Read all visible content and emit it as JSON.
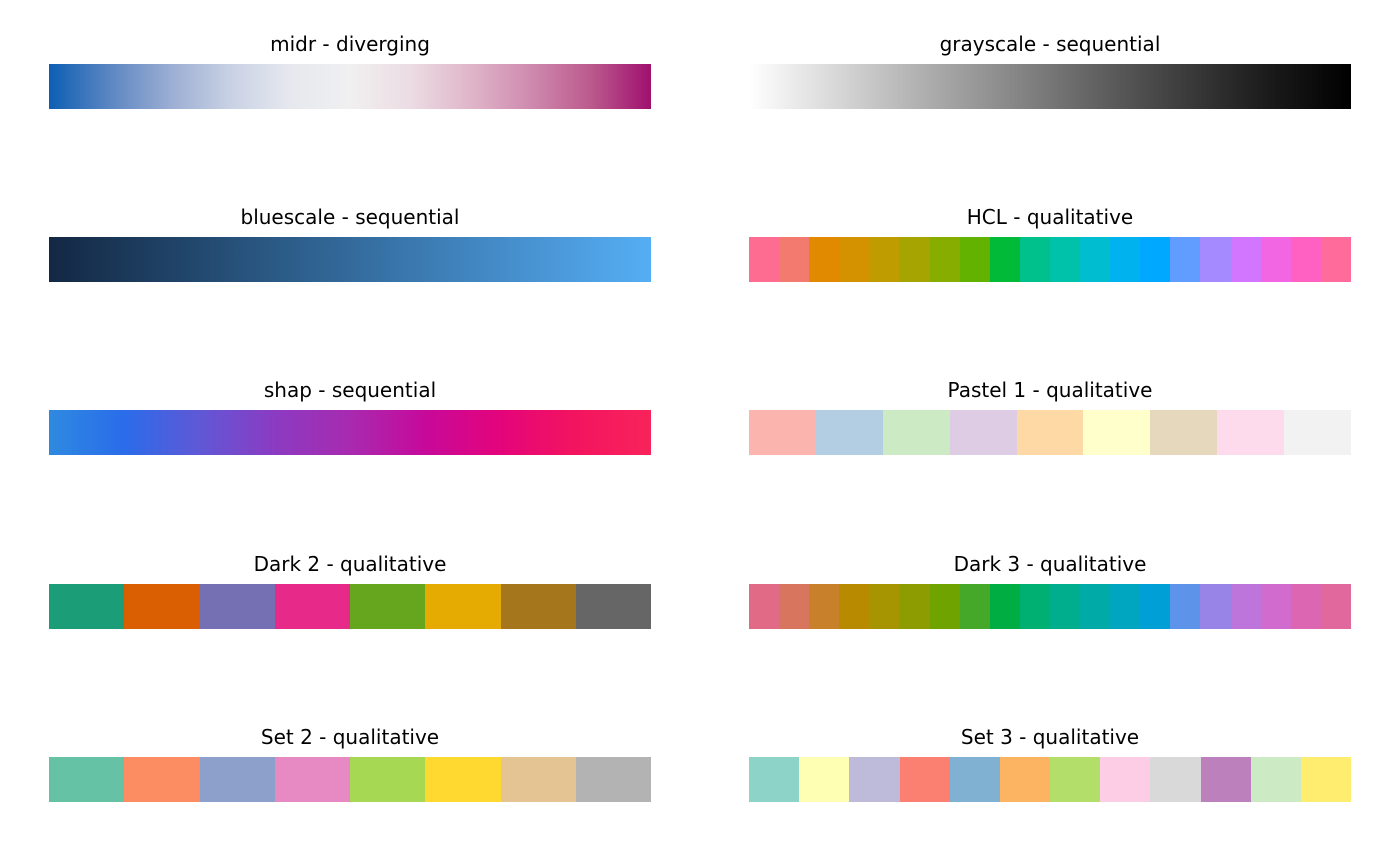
{
  "chart_data": [
    {
      "type": "palette",
      "title": "midr - diverging",
      "style": "gradient",
      "colors": [
        "#0d5eb3",
        "#5b86c2",
        "#9aadd3",
        "#c8d1e4",
        "#e6e8ee",
        "#f0f0f0",
        "#ecdce3",
        "#dfb6c9",
        "#cf8aae",
        "#bb5a8d",
        "#a0106e"
      ]
    },
    {
      "type": "palette",
      "title": "grayscale - sequential",
      "style": "gradient",
      "colors": [
        "#ffffff",
        "#d8d8d8",
        "#b0b0b0",
        "#8a8a8a",
        "#636363",
        "#3e3e3e",
        "#1c1c1c",
        "#000000"
      ]
    },
    {
      "type": "palette",
      "title": "bluescale - sequential",
      "style": "gradient",
      "colors": [
        "#132843",
        "#1f4266",
        "#2c5d89",
        "#3a78ae",
        "#4893d2",
        "#55aef4"
      ]
    },
    {
      "type": "palette",
      "title": "HCL - qualitative",
      "style": "blocks",
      "colors": [
        "#ff6c91",
        "#f37a6e",
        "#e18a00",
        "#d49200",
        "#bf9c00",
        "#a5a400",
        "#86ad00",
        "#63b200",
        "#00ba38",
        "#00c08b",
        "#00c1aa",
        "#00bdd0",
        "#00b2ed",
        "#00a9ff",
        "#619cff",
        "#a58aff",
        "#d376ff",
        "#f266e4",
        "#ff61c3",
        "#ff6b9a"
      ]
    },
    {
      "type": "palette",
      "title": "shap - sequential",
      "style": "gradient",
      "colors": [
        "#2e8ae0",
        "#2a6cea",
        "#6058d6",
        "#8b3bc2",
        "#a82ab0",
        "#c7099a",
        "#e4047b",
        "#f3145f",
        "#f8235b"
      ]
    },
    {
      "type": "palette",
      "title": "Pastel 1 - qualitative",
      "style": "blocks",
      "colors": [
        "#fbb4ae",
        "#b3cde3",
        "#ccebc5",
        "#decbe4",
        "#fed9a6",
        "#ffffcc",
        "#e5d8bd",
        "#fddaec",
        "#f2f2f2"
      ]
    },
    {
      "type": "palette",
      "title": "Dark 2 - qualitative",
      "style": "blocks",
      "colors": [
        "#1b9e77",
        "#d95f02",
        "#7570b3",
        "#e7298a",
        "#66a61e",
        "#e6ab02",
        "#a6761d",
        "#666666"
      ]
    },
    {
      "type": "palette",
      "title": "Dark 3 - qualitative",
      "style": "blocks",
      "colors": [
        "#e16a86",
        "#d8755e",
        "#c8802b",
        "#b88a00",
        "#a69400",
        "#8d9c00",
        "#6ea300",
        "#45a829",
        "#00ad43",
        "#00af72",
        "#00ae8e",
        "#00aba7",
        "#00a6bf",
        "#00a0d6",
        "#5d93e8",
        "#9784e6",
        "#bd75dc",
        "#d16bcd",
        "#dc66b2",
        "#e1689c"
      ]
    },
    {
      "type": "palette",
      "title": "Set 2 - qualitative",
      "style": "blocks",
      "colors": [
        "#66c2a5",
        "#fc8d62",
        "#8da0cb",
        "#e78ac3",
        "#a6d854",
        "#ffd92f",
        "#e5c494",
        "#b3b3b3"
      ]
    },
    {
      "type": "palette",
      "title": "Set 3 - qualitative",
      "style": "blocks",
      "colors": [
        "#8dd3c7",
        "#ffffb3",
        "#bebada",
        "#fb8072",
        "#80b1d3",
        "#fdb462",
        "#b3de69",
        "#fccde5",
        "#d9d9d9",
        "#bc80bd",
        "#ccebc5",
        "#ffed6f"
      ]
    }
  ]
}
